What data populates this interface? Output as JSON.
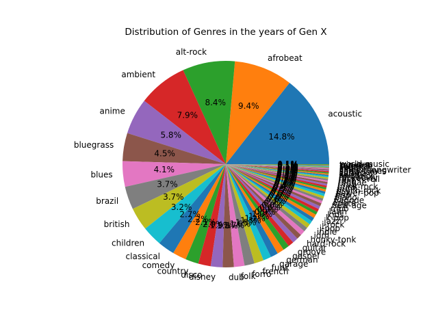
{
  "chart_data": {
    "type": "pie",
    "title": "Distribution of Genres in the years of Gen X",
    "start_angle_deg": 0,
    "direction": "counterclockwise",
    "autopct_format": "%.1f%%",
    "slices": [
      {
        "label": "acoustic",
        "value": 14.8,
        "color": "#1f77b4"
      },
      {
        "label": "afrobeat",
        "value": 9.4,
        "color": "#ff7f0e"
      },
      {
        "label": "alt-rock",
        "value": 8.4,
        "color": "#2ca02c"
      },
      {
        "label": "ambient",
        "value": 7.9,
        "color": "#d62728"
      },
      {
        "label": "anime",
        "value": 5.8,
        "color": "#9467bd"
      },
      {
        "label": "bluegrass",
        "value": 4.5,
        "color": "#8c564b"
      },
      {
        "label": "blues",
        "value": 4.1,
        "color": "#e377c2"
      },
      {
        "label": "brazil",
        "value": 3.7,
        "color": "#7f7f7f"
      },
      {
        "label": "british",
        "value": 3.7,
        "color": "#bcbd22"
      },
      {
        "label": "children",
        "value": 3.2,
        "color": "#17becf"
      },
      {
        "label": "classical",
        "value": 2.7,
        "color": "#1f77b4"
      },
      {
        "label": "comedy",
        "value": 2.2,
        "color": "#ff7f0e"
      },
      {
        "label": "country",
        "value": 2.1,
        "color": "#2ca02c"
      },
      {
        "label": "disco",
        "value": 2.0,
        "color": "#d62728"
      },
      {
        "label": "disney",
        "value": 1.9,
        "color": "#9467bd"
      },
      {
        "label": "dub",
        "value": 1.8,
        "color": "#8c564b"
      },
      {
        "label": "folk",
        "value": 1.7,
        "color": "#e377c2"
      },
      {
        "label": "forro",
        "value": 1.6,
        "color": "#7f7f7f"
      },
      {
        "label": "french",
        "value": 1.5,
        "color": "#bcbd22"
      },
      {
        "label": "funk",
        "value": 1.3,
        "color": "#17becf"
      },
      {
        "label": "garage",
        "value": 1.2,
        "color": "#1f77b4"
      },
      {
        "label": "german",
        "value": 1.1,
        "color": "#ff7f0e"
      },
      {
        "label": "gospel",
        "value": 1.0,
        "color": "#2ca02c"
      },
      {
        "label": "groove",
        "value": 0.9,
        "color": "#d62728"
      },
      {
        "label": "guitar",
        "value": 0.9,
        "color": "#9467bd"
      },
      {
        "label": "hard-rock",
        "value": 0.8,
        "color": "#8c564b"
      },
      {
        "label": "honky-tonk",
        "value": 0.8,
        "color": "#e377c2"
      },
      {
        "label": "idm",
        "value": 0.7,
        "color": "#7f7f7f"
      },
      {
        "label": "indie",
        "value": 0.7,
        "color": "#bcbd22"
      },
      {
        "label": "j-pop",
        "value": 0.6,
        "color": "#17becf"
      },
      {
        "label": "j-rock",
        "value": 0.6,
        "color": "#1f77b4"
      },
      {
        "label": "jazz",
        "value": 0.6,
        "color": "#ff7f0e"
      },
      {
        "label": "k-pop",
        "value": 0.5,
        "color": "#2ca02c"
      },
      {
        "label": "kids",
        "value": 0.5,
        "color": "#d62728"
      },
      {
        "label": "latin",
        "value": 0.5,
        "color": "#9467bd"
      },
      {
        "label": "mpb",
        "value": 0.5,
        "color": "#8c564b"
      },
      {
        "label": "new-age",
        "value": 0.4,
        "color": "#e377c2"
      },
      {
        "label": "opera",
        "value": 0.4,
        "color": "#7f7f7f"
      },
      {
        "label": "pagode",
        "value": 0.4,
        "color": "#bcbd22"
      },
      {
        "label": "piano",
        "value": 0.4,
        "color": "#17becf"
      },
      {
        "label": "pop",
        "value": 0.35,
        "color": "#1f77b4"
      },
      {
        "label": "power-pop",
        "value": 0.35,
        "color": "#ff7f0e"
      },
      {
        "label": "psych-rock",
        "value": 0.3,
        "color": "#2ca02c"
      },
      {
        "label": "punk",
        "value": 0.3,
        "color": "#d62728"
      },
      {
        "label": "punk-rock",
        "value": 0.3,
        "color": "#9467bd"
      },
      {
        "label": "r-n-b",
        "value": 0.3,
        "color": "#8c564b"
      },
      {
        "label": "reggae",
        "value": 0.25,
        "color": "#e377c2"
      },
      {
        "label": "rock",
        "value": 0.25,
        "color": "#7f7f7f"
      },
      {
        "label": "rock-n-roll",
        "value": 0.25,
        "color": "#bcbd22"
      },
      {
        "label": "rockabilly",
        "value": 0.2,
        "color": "#17becf"
      },
      {
        "label": "romance",
        "value": 0.2,
        "color": "#1f77b4"
      },
      {
        "label": "salsa",
        "value": 0.2,
        "color": "#ff7f0e"
      },
      {
        "label": "samba",
        "value": 0.2,
        "color": "#2ca02c"
      },
      {
        "label": "sertanejo",
        "value": 0.2,
        "color": "#d62728"
      },
      {
        "label": "show-tunes",
        "value": 0.15,
        "color": "#9467bd"
      },
      {
        "label": "singer-songwriter",
        "value": 0.15,
        "color": "#8c564b"
      },
      {
        "label": "ska",
        "value": 0.15,
        "color": "#e377c2"
      },
      {
        "label": "soul",
        "value": 0.15,
        "color": "#7f7f7f"
      },
      {
        "label": "spanish",
        "value": 0.1,
        "color": "#bcbd22"
      },
      {
        "label": "swedish",
        "value": 0.1,
        "color": "#17becf"
      },
      {
        "label": "tango",
        "value": 0.1,
        "color": "#1f77b4"
      },
      {
        "label": "trip-hop",
        "value": 0.1,
        "color": "#ff7f0e"
      },
      {
        "label": "world-music",
        "value": 0.1,
        "color": "#2ca02c"
      }
    ]
  }
}
